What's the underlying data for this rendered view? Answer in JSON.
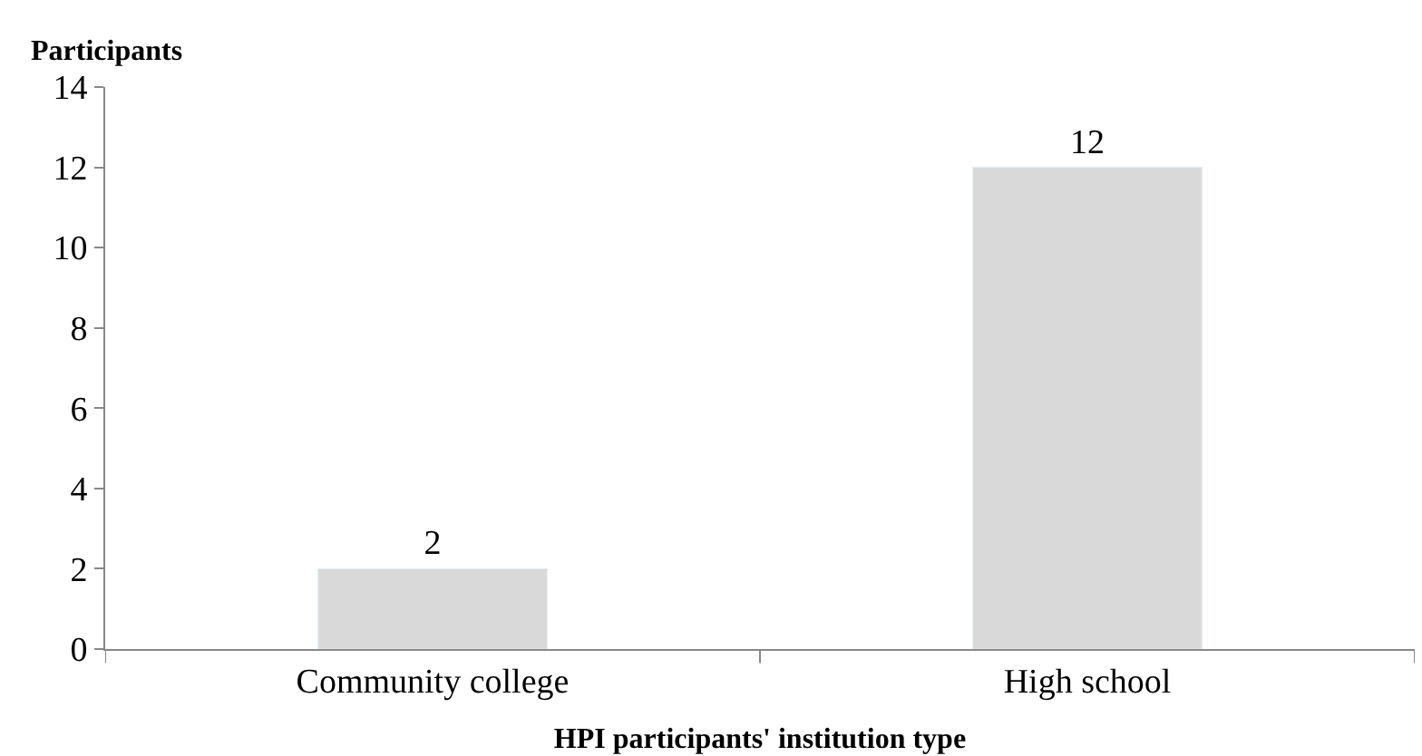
{
  "chart_data": {
    "type": "bar",
    "xlabel": "HPI participants' institution type",
    "ylabel": "Participants",
    "categories": [
      "Community college",
      "High school"
    ],
    "values": [
      2,
      12
    ],
    "color": "#d9d9d9",
    "ylim": [
      0,
      14
    ],
    "yticks": [
      0,
      2,
      4,
      6,
      8,
      10,
      12,
      14
    ],
    "data_labels": true
  }
}
